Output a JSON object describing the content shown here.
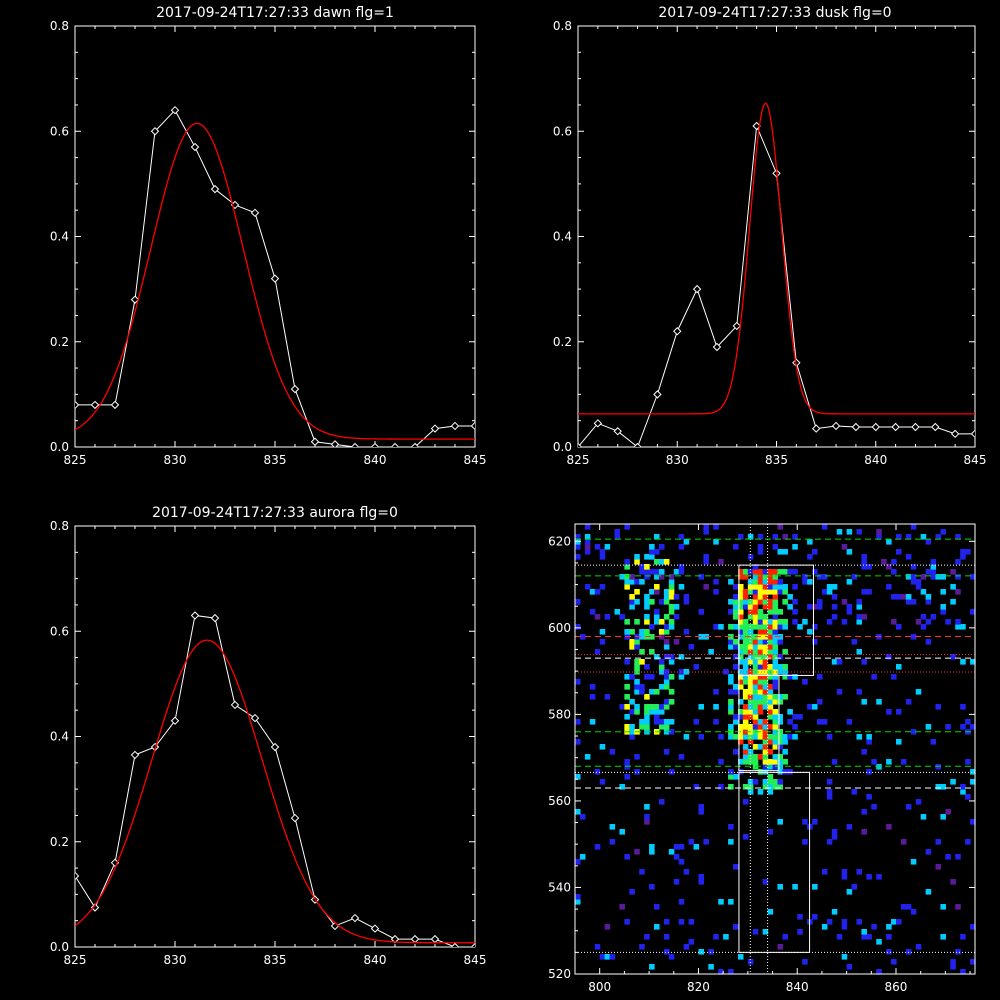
{
  "chart_data": [
    {
      "type": "line",
      "title": "2017-09-24T17:27:33 dawn flg=1",
      "xlim": [
        825,
        845
      ],
      "ylim": [
        0,
        0.8
      ],
      "x_ticks": [
        825,
        830,
        835,
        840,
        845
      ],
      "y_ticks": [
        "0.0",
        "0.2",
        "0.4",
        "0.6",
        "0.8"
      ],
      "series": [
        {
          "style": "data",
          "color": "#ffffff",
          "x": [
            825,
            826,
            827,
            828,
            829,
            830,
            831,
            832,
            833,
            834,
            835,
            836,
            837,
            838,
            839,
            840,
            841,
            842,
            843,
            844,
            845
          ],
          "y": [
            0.08,
            0.08,
            0.08,
            0.28,
            0.6,
            0.64,
            0.57,
            0.49,
            0.46,
            0.445,
            0.32,
            0.11,
            0.01,
            0.005,
            0.0,
            0.0,
            0.0,
            0.0,
            0.035,
            0.04,
            0.04
          ]
        },
        {
          "style": "fit",
          "color": "#ff0000",
          "gaussian": {
            "amp": 0.6,
            "center": 831.1,
            "sigma": 2.3,
            "base": 0.015
          }
        }
      ]
    },
    {
      "type": "line",
      "title": "2017-09-24T17:27:33 dusk flg=0",
      "xlim": [
        825,
        845
      ],
      "ylim": [
        0,
        0.8
      ],
      "x_ticks": [
        825,
        830,
        835,
        840,
        845
      ],
      "y_ticks": [
        "0.0",
        "0.2",
        "0.4",
        "0.6",
        "0.8"
      ],
      "series": [
        {
          "style": "data",
          "color": "#ffffff",
          "x": [
            825,
            826,
            827,
            828,
            829,
            830,
            831,
            832,
            833,
            834,
            835,
            836,
            837,
            838,
            839,
            840,
            841,
            842,
            843,
            844,
            845
          ],
          "y": [
            0.0,
            0.045,
            0.03,
            0.0,
            0.1,
            0.22,
            0.3,
            0.19,
            0.23,
            0.61,
            0.52,
            0.16,
            0.035,
            0.04,
            0.038,
            0.038,
            0.038,
            0.038,
            0.038,
            0.025,
            0.025
          ]
        },
        {
          "style": "fit",
          "color": "#ff0000",
          "gaussian": {
            "amp": 0.59,
            "center": 834.45,
            "sigma": 0.8,
            "base": 0.063
          }
        }
      ]
    },
    {
      "type": "line",
      "title": "2017-09-24T17:27:33 aurora flg=0",
      "xlim": [
        825,
        845
      ],
      "ylim": [
        0,
        0.8
      ],
      "x_ticks": [
        825,
        830,
        835,
        840,
        845
      ],
      "y_ticks": [
        "0.0",
        "0.2",
        "0.4",
        "0.6",
        "0.8"
      ],
      "series": [
        {
          "style": "data",
          "color": "#ffffff",
          "x": [
            825,
            826,
            827,
            828,
            829,
            830,
            831,
            832,
            833,
            834,
            835,
            836,
            837,
            838,
            839,
            840,
            841,
            842,
            843,
            844,
            845
          ],
          "y": [
            0.135,
            0.075,
            0.16,
            0.365,
            0.38,
            0.43,
            0.63,
            0.625,
            0.46,
            0.435,
            0.38,
            0.245,
            0.09,
            0.04,
            0.055,
            0.035,
            0.015,
            0.015,
            0.015,
            0.0,
            0.0
          ]
        },
        {
          "style": "fit",
          "color": "#ff0000",
          "gaussian": {
            "amp": 0.575,
            "center": 831.6,
            "sigma": 2.75,
            "base": 0.008
          }
        }
      ]
    },
    {
      "type": "heatmap",
      "title": "",
      "xlim": [
        795,
        876
      ],
      "ylim": [
        520,
        624
      ],
      "x_ticks": [
        800,
        820,
        840,
        860
      ],
      "y_ticks": [
        520,
        540,
        560,
        580,
        600,
        620
      ],
      "colormap": [
        "#5a1a9a",
        "#2222ee",
        "#00ccff",
        "#22ee55",
        "#ffff00",
        "#ff2200"
      ],
      "emission_column_x": 832,
      "emission_band_y": [
        568,
        614
      ],
      "secondary_column_x": 810,
      "vertical_dotted_lines_x": [
        830.5,
        834
      ],
      "hlines": [
        {
          "y": 620.5,
          "color": "#00dd00",
          "style": "dashed"
        },
        {
          "y": 612,
          "color": "#00dd00",
          "style": "dashed"
        },
        {
          "y": 614.5,
          "color": "#ffffff",
          "style": "dotted"
        },
        {
          "y": 598,
          "color": "#ff3030",
          "style": "dashed"
        },
        {
          "y": 593.8,
          "color": "#ff3030",
          "style": "dotted"
        },
        {
          "y": 593,
          "color": "#ffffff",
          "style": "dashed"
        },
        {
          "y": 589.8,
          "color": "#ff3030",
          "style": "dotted"
        },
        {
          "y": 576,
          "color": "#00dd00",
          "style": "dashed"
        },
        {
          "y": 568,
          "color": "#00dd00",
          "style": "dashed"
        },
        {
          "y": 566.6,
          "color": "#ffffff",
          "style": "dotted"
        },
        {
          "y": 563,
          "color": "#ffffff",
          "style": "dashed"
        },
        {
          "y": 525,
          "color": "#ffffff",
          "style": "dotted"
        }
      ],
      "boxes": [
        {
          "x0": 828.2,
          "x1": 843.3,
          "y0": 589,
          "y1": 614.5
        },
        {
          "x0": 828.2,
          "x1": 836.3,
          "y0": 567,
          "y1": 589
        },
        {
          "x0": 828.2,
          "x1": 842.5,
          "y0": 525,
          "y1": 566.6
        }
      ]
    }
  ]
}
